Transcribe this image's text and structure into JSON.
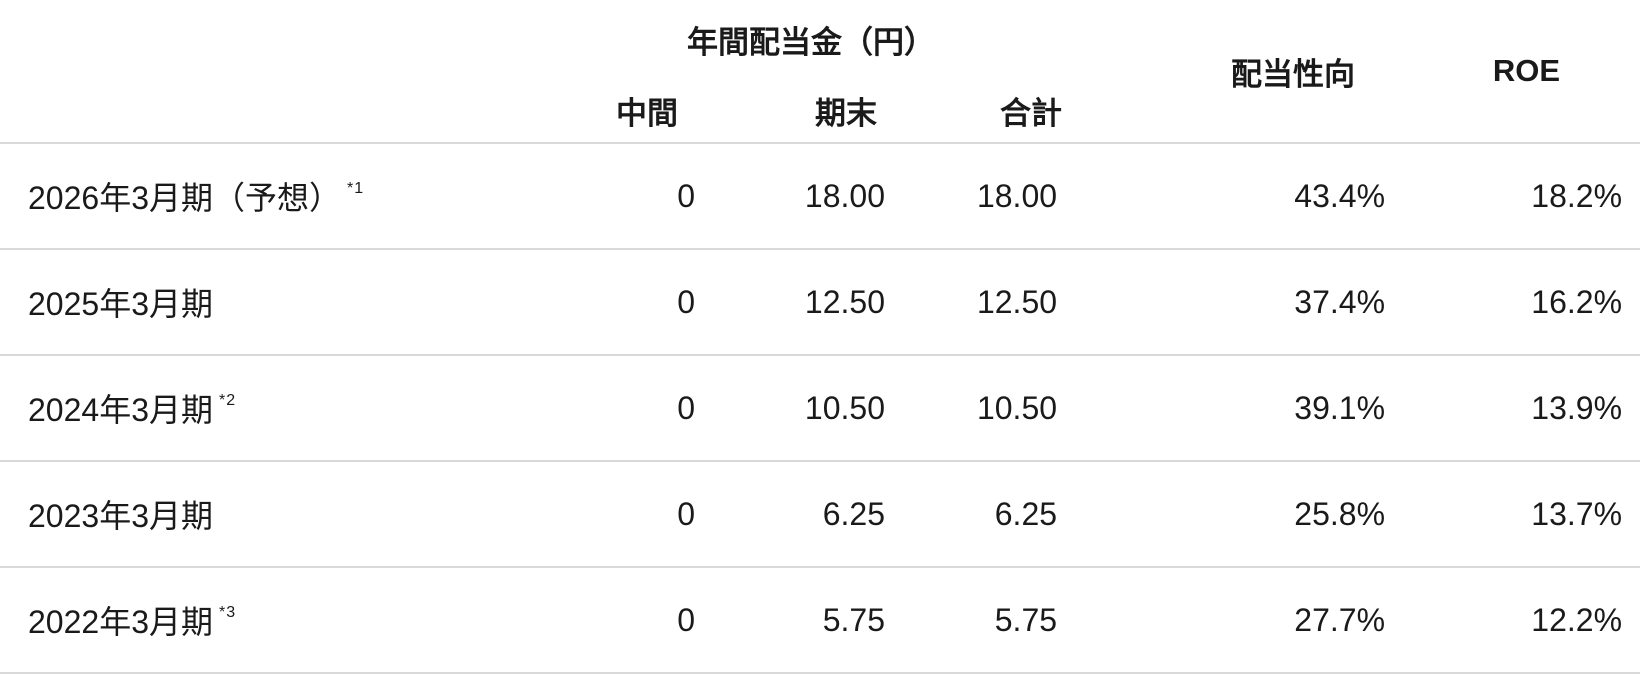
{
  "table": {
    "header": {
      "dividend_group": "年間配当金（円）",
      "interim": "中間",
      "year_end": "期末",
      "total": "合計",
      "payout_ratio": "配当性向",
      "roe": "ROE"
    },
    "rows": [
      {
        "label": "2026年3月期（予想）",
        "note": "*1",
        "interim": "0",
        "year_end": "18.00",
        "total": "18.00",
        "payout_ratio": "43.4%",
        "roe": "18.2%"
      },
      {
        "label": "2025年3月期",
        "interim": "0",
        "year_end": "12.50",
        "total": "12.50",
        "payout_ratio": "37.4%",
        "roe": "16.2%"
      },
      {
        "label": "2024年3月期",
        "note": "*2",
        "interim": "0",
        "year_end": "10.50",
        "total": "10.50",
        "payout_ratio": "39.1%",
        "roe": "13.9%"
      },
      {
        "label": "2023年3月期",
        "interim": "0",
        "year_end": "6.25",
        "total": "6.25",
        "payout_ratio": "25.8%",
        "roe": "13.7%"
      },
      {
        "label": "2022年3月期",
        "note": "*3",
        "interim": "0",
        "year_end": "5.75",
        "total": "5.75",
        "payout_ratio": "27.7%",
        "roe": "12.2%"
      }
    ],
    "colors": {
      "text": "#1a1a1a",
      "divider": "#d9d9d9",
      "background": "#ffffff"
    }
  }
}
